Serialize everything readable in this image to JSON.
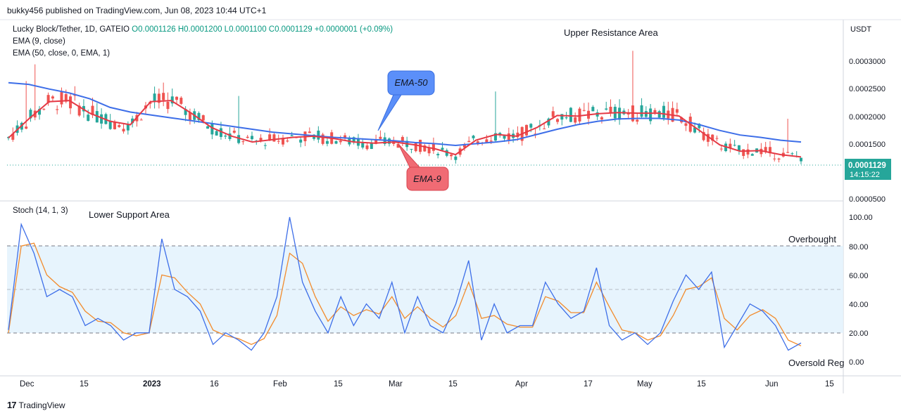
{
  "header": {
    "text": "bukky456 published on TradingView.com, Jun 08, 2023 10:44 UTC+1"
  },
  "legend": {
    "symbol": "Lucky Block/Tether, 1D, GATEIO",
    "ohlc": "O0.0001126  H0.0001200  L0.0001100  C0.0001129  +0.0000001 (+0.09%)",
    "ema9": "EMA (9, close)",
    "ema50": "EMA (50, close, 0, EMA, 1)"
  },
  "annotations": {
    "upper": "Upper Resistance Area",
    "lower": "Lower Support Area",
    "ema50_callout": "EMA-50",
    "ema9_callout": "EMA-9",
    "overbought": "Overbought",
    "oversold": "Oversold Reg"
  },
  "price_axis": {
    "currency": "USDT",
    "ticks": [
      "0.0003000",
      "0.0002500",
      "0.0002000",
      "0.0001500",
      "0.0000500"
    ],
    "last_price": "0.0001129",
    "countdown": "14:15:22"
  },
  "stoch": {
    "label": "Stoch (14, 1, 3)",
    "ticks": [
      "100.00",
      "80.00",
      "60.00",
      "40.00",
      "20.00",
      "0.00"
    ]
  },
  "time_axis": {
    "labels": [
      "Dec",
      "15",
      "2023",
      "16",
      "Feb",
      "15",
      "Mar",
      "15",
      "Apr",
      "17",
      "May",
      "15",
      "Jun",
      "15"
    ]
  },
  "footer": {
    "brand": "TradingView",
    "logo": "17"
  },
  "colors": {
    "up": "#26a69a",
    "down": "#ef5350",
    "ema9": "#e53945",
    "ema50": "#3d6ee8",
    "stoch_k": "#3d6ee8",
    "stoch_d": "#f28b2c",
    "band": "#e3f2fd"
  },
  "chart_data": {
    "type": "candlestick",
    "symbol": "Lucky Block/Tether",
    "interval": "1D",
    "ylim": [
      4e-05,
      0.00035
    ],
    "ema9": [
      0.000147,
      0.00018,
      0.00021,
      0.000212,
      0.00019,
      0.000176,
      0.00017,
      0.00021,
      0.000212,
      0.00019,
      0.000165,
      0.00015,
      0.00014,
      0.000144,
      0.000148,
      0.00015,
      0.000146,
      0.00014,
      0.000138,
      0.00014,
      0.000135,
      0.000128,
      0.000118,
      0.000143,
      0.000153,
      0.00015,
      0.000165,
      0.000186,
      0.000185,
      0.000189,
      0.000191,
      0.00019,
      0.00019,
      0.000185,
      0.00016,
      0.000135,
      0.000124,
      0.000125,
      0.000118,
      0.000114
    ],
    "ema50": [
      0.000243,
      0.00024,
      0.000232,
      0.000225,
      0.000215,
      0.0002,
      0.000192,
      0.000187,
      0.000182,
      0.000177,
      0.000172,
      0.000167,
      0.000162,
      0.000157,
      0.000154,
      0.000151,
      0.000148,
      0.000146,
      0.000144,
      0.000142,
      0.000139,
      0.000137,
      0.000134,
      0.000137,
      0.00014,
      0.000144,
      0.000153,
      0.000162,
      0.00017,
      0.000176,
      0.00018,
      0.000181,
      0.000181,
      0.000178,
      0.00017,
      0.00016,
      0.000152,
      0.000148,
      0.000143,
      0.00014
    ],
    "stoch_k": [
      22,
      95,
      75,
      45,
      50,
      45,
      25,
      30,
      25,
      15,
      20,
      20,
      85,
      50,
      45,
      35,
      12,
      20,
      15,
      8,
      20,
      45,
      100,
      55,
      35,
      20,
      45,
      25,
      40,
      30,
      55,
      20,
      45,
      25,
      20,
      40,
      70,
      15,
      40,
      20,
      25,
      25,
      55,
      40,
      30,
      35,
      65,
      25,
      15,
      20,
      12,
      20,
      42,
      60,
      50,
      62,
      10,
      25,
      40,
      35,
      25,
      8,
      13
    ],
    "stoch_d": [
      20,
      80,
      82,
      60,
      52,
      48,
      35,
      28,
      27,
      20,
      18,
      20,
      60,
      58,
      48,
      40,
      22,
      18,
      16,
      12,
      16,
      32,
      75,
      68,
      45,
      28,
      38,
      32,
      36,
      33,
      45,
      30,
      38,
      30,
      24,
      32,
      55,
      30,
      32,
      26,
      24,
      24,
      45,
      42,
      34,
      34,
      55,
      38,
      22,
      20,
      15,
      18,
      32,
      50,
      52,
      58,
      30,
      22,
      32,
      36,
      30,
      15,
      11
    ],
    "stoch_levels": {
      "overbought": 80,
      "middle": 50,
      "oversold": 20
    },
    "ylim_stoch": [
      0,
      100
    ]
  }
}
